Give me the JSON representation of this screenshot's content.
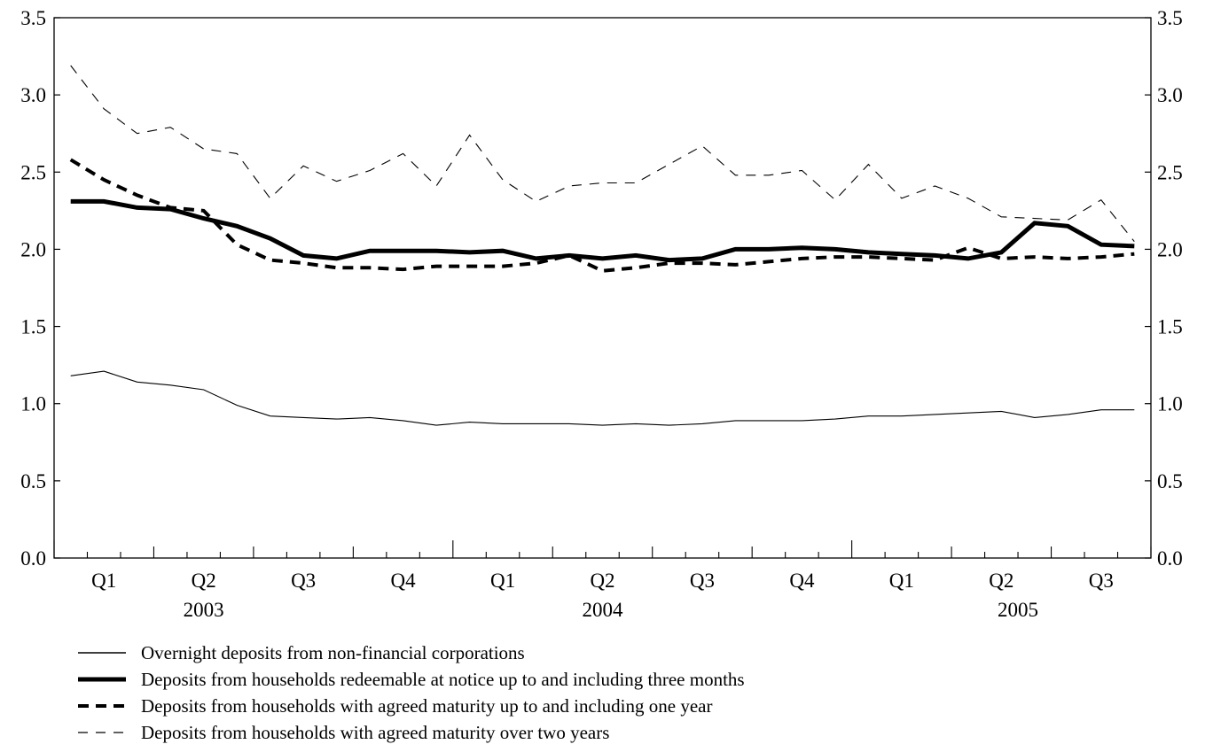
{
  "chart_data": {
    "type": "line",
    "title": "",
    "ylim": [
      0,
      3.5
    ],
    "y_ticks": [
      "0.0",
      "0.5",
      "1.0",
      "1.5",
      "2.0",
      "2.5",
      "3.0",
      "3.5"
    ],
    "quarter_labels": [
      "Q1",
      "Q2",
      "Q3",
      "Q4",
      "Q1",
      "Q2",
      "Q3",
      "Q4",
      "Q1",
      "Q2",
      "Q3"
    ],
    "year_labels": [
      "2003",
      "2004",
      "2005"
    ],
    "x_unit": "month",
    "x_start": "2003-01",
    "x_range_months": [
      -0.5,
      32.5
    ],
    "grid": false,
    "legend_position": "bottom",
    "series": [
      {
        "name": "Overnight deposits from non-financial corporations",
        "style": "thin-solid",
        "values": [
          1.18,
          1.21,
          1.14,
          1.12,
          1.09,
          0.99,
          0.92,
          0.91,
          0.9,
          0.91,
          0.89,
          0.86,
          0.88,
          0.87,
          0.87,
          0.87,
          0.86,
          0.87,
          0.86,
          0.87,
          0.89,
          0.89,
          0.89,
          0.9,
          0.92,
          0.92,
          0.93,
          0.94,
          0.95,
          0.91,
          0.93,
          0.96,
          0.96
        ]
      },
      {
        "name": "Deposits from households redeemable at notice up to and including three months",
        "style": "thick-solid",
        "values": [
          2.31,
          2.31,
          2.27,
          2.26,
          2.2,
          2.15,
          2.07,
          1.96,
          1.94,
          1.99,
          1.99,
          1.99,
          1.98,
          1.99,
          1.94,
          1.96,
          1.94,
          1.96,
          1.93,
          1.94,
          2.0,
          2.0,
          2.01,
          2.0,
          1.98,
          1.97,
          1.96,
          1.94,
          1.98,
          2.17,
          2.15,
          2.03,
          2.02
        ]
      },
      {
        "name": "Deposits from households with agreed maturity up to and including one year",
        "style": "thick-dashed",
        "values": [
          2.58,
          2.45,
          2.35,
          2.27,
          2.25,
          2.03,
          1.93,
          1.91,
          1.88,
          1.88,
          1.87,
          1.89,
          1.89,
          1.89,
          1.91,
          1.96,
          1.86,
          1.88,
          1.91,
          1.91,
          1.9,
          1.92,
          1.94,
          1.95,
          1.95,
          1.94,
          1.93,
          2.01,
          1.94,
          1.95,
          1.94,
          1.95,
          1.97
        ]
      },
      {
        "name": "Deposits from households with agreed maturity over two years",
        "style": "thin-dashed",
        "values": [
          3.19,
          2.91,
          2.75,
          2.79,
          2.65,
          2.62,
          2.33,
          2.54,
          2.44,
          2.51,
          2.62,
          2.41,
          2.74,
          2.45,
          2.31,
          2.41,
          2.43,
          2.43,
          2.55,
          2.67,
          2.48,
          2.48,
          2.51,
          2.32,
          2.55,
          2.33,
          2.41,
          2.33,
          2.21,
          2.2,
          2.19,
          2.32,
          2.05
        ]
      }
    ]
  }
}
